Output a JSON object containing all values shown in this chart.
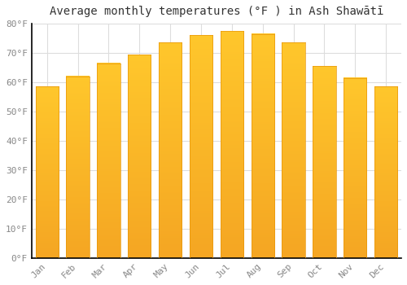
{
  "title": "Average monthly temperatures (°F ) in Ash Shawātī",
  "months": [
    "Jan",
    "Feb",
    "Mar",
    "Apr",
    "May",
    "Jun",
    "Jul",
    "Aug",
    "Sep",
    "Oct",
    "Nov",
    "Dec"
  ],
  "values": [
    58.5,
    62,
    66.5,
    69.5,
    73.5,
    76,
    77.5,
    76.5,
    73.5,
    65.5,
    61.5,
    58.5
  ],
  "bar_color_top": "#FFC72C",
  "bar_color_bottom": "#F5A623",
  "background_color": "#FFFFFF",
  "grid_color": "#DDDDDD",
  "ylim": [
    0,
    80
  ],
  "yticks": [
    0,
    10,
    20,
    30,
    40,
    50,
    60,
    70,
    80
  ],
  "ytick_labels": [
    "0°F",
    "10°F",
    "20°F",
    "30°F",
    "40°F",
    "50°F",
    "60°F",
    "70°F",
    "80°F"
  ],
  "title_fontsize": 10,
  "tick_fontsize": 8,
  "tick_color": "#888888",
  "spine_color": "#000000",
  "bar_width": 0.75
}
